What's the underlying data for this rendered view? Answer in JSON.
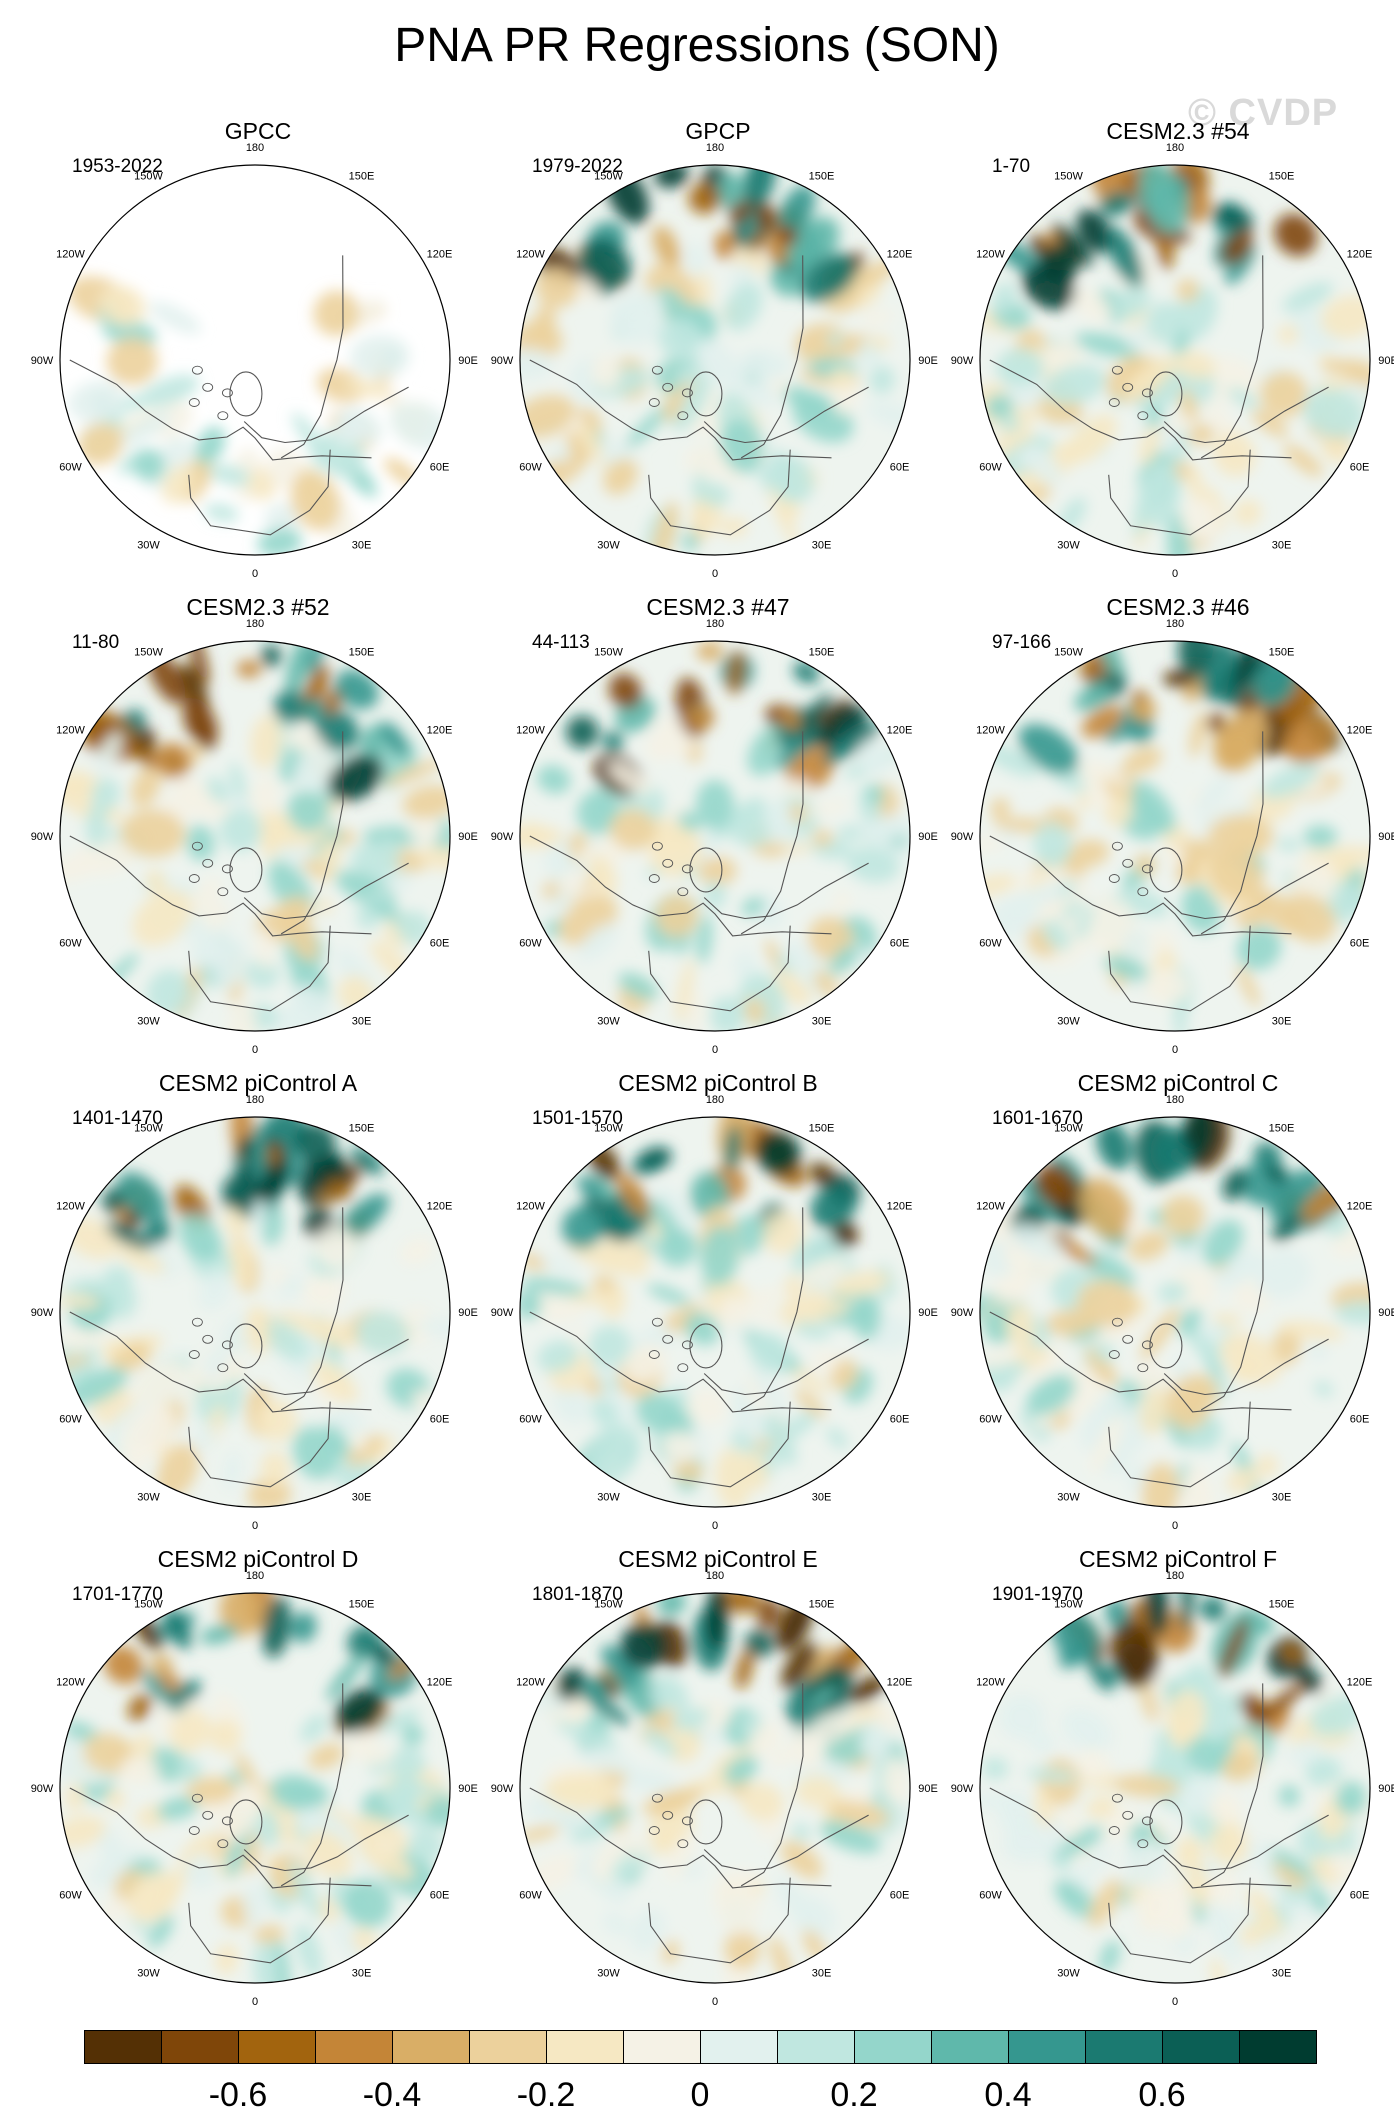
{
  "figure": {
    "title": "PNA PR Regressions (SON)",
    "watermark": "© CVDP"
  },
  "longitude_labels": [
    "180",
    "150E",
    "120E",
    "90E",
    "60E",
    "30E",
    "0",
    "30W",
    "60W",
    "90W",
    "120W",
    "150W"
  ],
  "panels": [
    {
      "title": "GPCC",
      "period": "1953-2022",
      "ocean_masked": true,
      "seed": 11
    },
    {
      "title": "GPCP",
      "period": "1979-2022",
      "ocean_masked": false,
      "seed": 23
    },
    {
      "title": "CESM2.3 #54",
      "period": "1-70",
      "ocean_masked": false,
      "seed": 37
    },
    {
      "title": "CESM2.3 #52",
      "period": "11-80",
      "ocean_masked": false,
      "seed": 41
    },
    {
      "title": "CESM2.3 #47",
      "period": "44-113",
      "ocean_masked": false,
      "seed": 53
    },
    {
      "title": "CESM2.3 #46",
      "period": "97-166",
      "ocean_masked": false,
      "seed": 67
    },
    {
      "title": "CESM2 piControl A",
      "period": "1401-1470",
      "ocean_masked": false,
      "seed": 71
    },
    {
      "title": "CESM2 piControl B",
      "period": "1501-1570",
      "ocean_masked": false,
      "seed": 83
    },
    {
      "title": "CESM2 piControl C",
      "period": "1601-1670",
      "ocean_masked": false,
      "seed": 97
    },
    {
      "title": "CESM2 piControl D",
      "period": "1701-1770",
      "ocean_masked": false,
      "seed": 101
    },
    {
      "title": "CESM2 piControl E",
      "period": "1801-1870",
      "ocean_masked": false,
      "seed": 113
    },
    {
      "title": "CESM2 piControl F",
      "period": "1901-1970",
      "ocean_masked": false,
      "seed": 127
    }
  ],
  "colorbar": {
    "colors": [
      "#543005",
      "#7f4609",
      "#a2640e",
      "#c48537",
      "#d9ae66",
      "#ecd19c",
      "#f6e8c3",
      "#f5f2e6",
      "#e2f1ee",
      "#c0e7e0",
      "#94d6cb",
      "#5fb8ab",
      "#35978f",
      "#1b7a71",
      "#0b5f55",
      "#003c30"
    ],
    "labels": [
      {
        "text": "-0.6",
        "value": -0.6
      },
      {
        "text": "-0.4",
        "value": -0.4
      },
      {
        "text": "-0.2",
        "value": -0.2
      },
      {
        "text": "0",
        "value": 0
      },
      {
        "text": "0.2",
        "value": 0.2
      },
      {
        "text": "0.4",
        "value": 0.4
      },
      {
        "text": "0.6",
        "value": 0.6
      }
    ],
    "min": -0.8,
    "max": 0.8
  }
}
